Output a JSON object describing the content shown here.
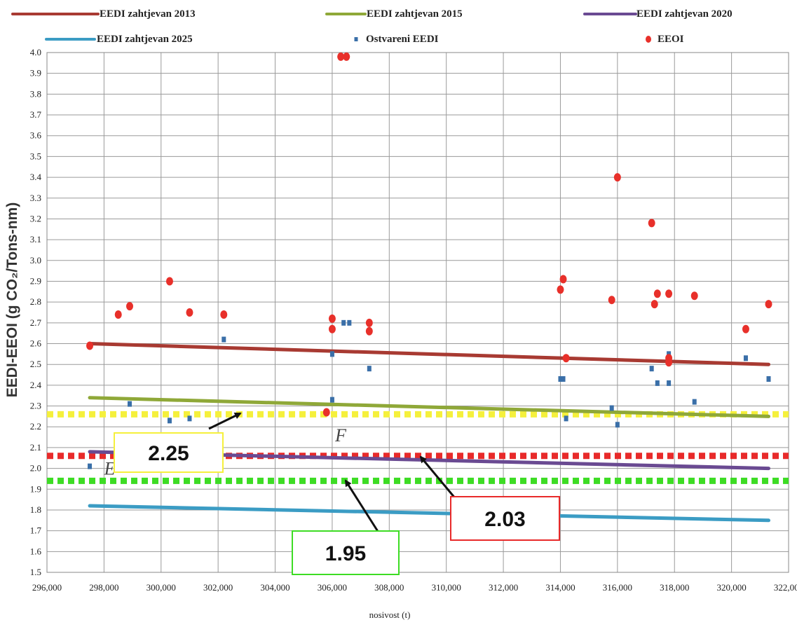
{
  "chart_data": {
    "type": "line",
    "title": "",
    "xlabel": "nosivost (t)",
    "ylabel": "EEDI-EEOI (g CO₂/Tons-nm)",
    "xlim": [
      296000,
      322000
    ],
    "ylim": [
      1.5,
      4.0
    ],
    "x_ticks": [
      "296,000",
      "298,000",
      "300,000",
      "302,000",
      "304,000",
      "306,000",
      "308,000",
      "310,000",
      "312,000",
      "314,000",
      "316,000",
      "318,000",
      "320,000",
      "322,000"
    ],
    "y_ticks": [
      "1.5",
      "1.6",
      "1.7",
      "1.8",
      "1.9",
      "2.0",
      "2.1",
      "2.2",
      "2.3",
      "2.4",
      "2.5",
      "2.6",
      "2.7",
      "2.8",
      "2.9",
      "3.0",
      "3.1",
      "3.2",
      "3.3",
      "3.4",
      "3.5",
      "3.6",
      "3.7",
      "3.8",
      "3.9",
      "4.0"
    ],
    "grid": true,
    "legend_position": "top",
    "series": [
      {
        "name": "EEDI zahtjevan 2013",
        "kind": "line",
        "color": "#a83a32",
        "x": [
          297500,
          321300
        ],
        "y": [
          2.6,
          2.5
        ]
      },
      {
        "name": "EEDI zahtjevan 2015",
        "kind": "line",
        "color": "#8fa838",
        "x": [
          297500,
          321300
        ],
        "y": [
          2.34,
          2.25
        ]
      },
      {
        "name": "EEDI zahtjevan 2020",
        "kind": "line",
        "color": "#6a4a92",
        "x": [
          297500,
          321300
        ],
        "y": [
          2.08,
          2.0
        ]
      },
      {
        "name": "EEDI zahtjevan 2025",
        "kind": "line",
        "color": "#3b9cc4",
        "x": [
          297500,
          321300
        ],
        "y": [
          1.82,
          1.75
        ]
      },
      {
        "name": "Ostvareni EEDI",
        "kind": "scatter",
        "color": "#3a6fa8",
        "x": [
          297500,
          298900,
          300300,
          301000,
          302200,
          306000,
          306000,
          306400,
          306600,
          307300,
          314000,
          314100,
          314200,
          315800,
          316000,
          317200,
          317400,
          317800,
          317800,
          318700,
          320500,
          321300
        ],
        "y": [
          2.01,
          2.31,
          2.23,
          2.24,
          2.62,
          2.55,
          2.33,
          2.7,
          2.7,
          2.48,
          2.43,
          2.43,
          2.24,
          2.29,
          2.21,
          2.48,
          2.41,
          2.55,
          2.41,
          2.32,
          2.53,
          2.43
        ]
      },
      {
        "name": "EEOI",
        "kind": "scatter",
        "color": "#e8302a",
        "x": [
          297500,
          298500,
          298900,
          300300,
          301000,
          302200,
          305800,
          306000,
          306000,
          306300,
          306500,
          307300,
          307300,
          314000,
          314100,
          314200,
          315800,
          316000,
          317200,
          317300,
          317400,
          317800,
          317800,
          317800,
          318700,
          320500,
          321300
        ],
        "y": [
          2.59,
          2.74,
          2.78,
          2.9,
          2.75,
          2.74,
          2.27,
          2.72,
          2.67,
          3.98,
          3.98,
          2.7,
          2.66,
          2.86,
          2.91,
          2.53,
          2.81,
          3.4,
          3.18,
          2.79,
          2.84,
          2.84,
          2.53,
          2.51,
          2.83,
          2.67,
          2.79
        ]
      }
    ],
    "reference_lines": [
      {
        "value": 2.25,
        "label": "2.25",
        "color": "#f5f03c"
      },
      {
        "value": 2.03,
        "label": "2.03",
        "color": "#e82a2a"
      },
      {
        "value": 1.95,
        "label": "1.95",
        "color": "#3ddc24"
      }
    ],
    "annotations": [
      {
        "text": "F",
        "x": 306300,
        "y": 2.13
      },
      {
        "text": "E",
        "x": 298200,
        "y": 1.97
      }
    ]
  }
}
